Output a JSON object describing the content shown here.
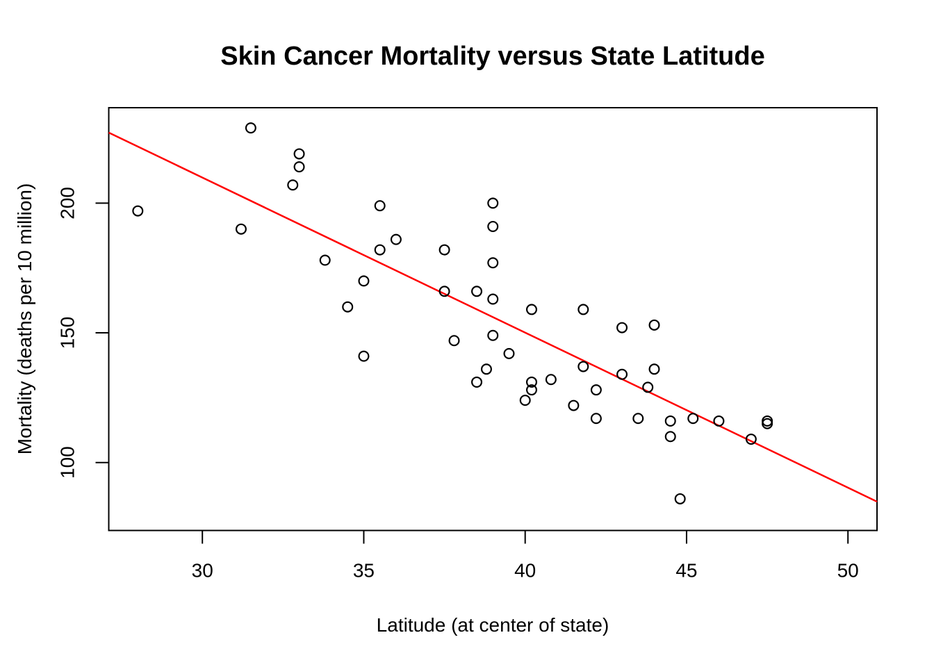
{
  "chart_data": {
    "type": "scatter",
    "title": "Skin Cancer Mortality versus State Latitude",
    "xlabel": "Latitude (at center of state)",
    "ylabel": "Mortality (deaths per 10 million)",
    "x_ticks": [
      30,
      35,
      40,
      45,
      50
    ],
    "y_ticks": [
      100,
      150,
      200
    ],
    "xlim": [
      27.1,
      50.9
    ],
    "ylim": [
      73.8,
      236.8
    ],
    "grid": false,
    "legend": "none",
    "marker": "open-circle",
    "point_color": "#000000",
    "points": [
      [
        28.0,
        197
      ],
      [
        31.2,
        190
      ],
      [
        31.5,
        229
      ],
      [
        32.8,
        207
      ],
      [
        33.0,
        219
      ],
      [
        33.0,
        214
      ],
      [
        33.8,
        178
      ],
      [
        34.5,
        160
      ],
      [
        35.0,
        170
      ],
      [
        35.0,
        141
      ],
      [
        35.5,
        199
      ],
      [
        35.5,
        182
      ],
      [
        36.0,
        186
      ],
      [
        37.5,
        182
      ],
      [
        37.5,
        166
      ],
      [
        37.8,
        147
      ],
      [
        38.5,
        166
      ],
      [
        38.5,
        131
      ],
      [
        38.8,
        136
      ],
      [
        39.0,
        200
      ],
      [
        39.0,
        191
      ],
      [
        39.0,
        177
      ],
      [
        39.0,
        163
      ],
      [
        39.0,
        149
      ],
      [
        39.5,
        142
      ],
      [
        40.0,
        124
      ],
      [
        40.2,
        159
      ],
      [
        40.2,
        131
      ],
      [
        40.2,
        128
      ],
      [
        40.8,
        132
      ],
      [
        41.5,
        122
      ],
      [
        41.8,
        159
      ],
      [
        41.8,
        137
      ],
      [
        42.2,
        128
      ],
      [
        42.2,
        117
      ],
      [
        43.0,
        152
      ],
      [
        43.0,
        134
      ],
      [
        43.5,
        117
      ],
      [
        43.8,
        129
      ],
      [
        44.0,
        153
      ],
      [
        44.0,
        136
      ],
      [
        44.5,
        116
      ],
      [
        44.5,
        110
      ],
      [
        44.8,
        86
      ],
      [
        45.2,
        117
      ],
      [
        46.0,
        116
      ],
      [
        47.0,
        109
      ],
      [
        47.5,
        115
      ],
      [
        47.5,
        116
      ]
    ],
    "regression_line": {
      "intercept": 389.19,
      "slope": -5.9776,
      "color": "#FF0000"
    },
    "axis_color": "#000000"
  }
}
